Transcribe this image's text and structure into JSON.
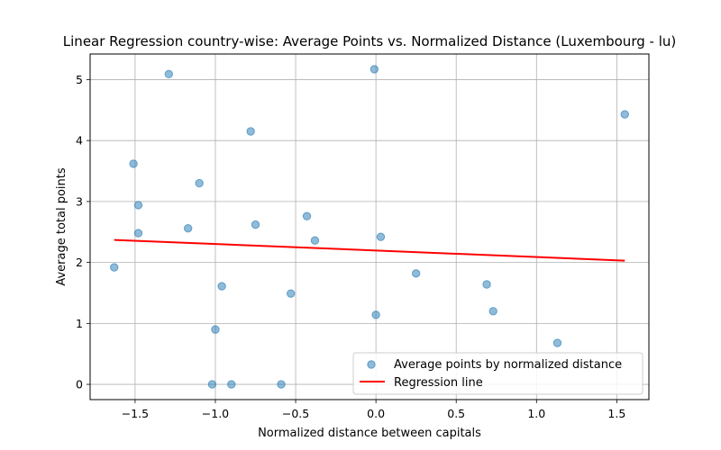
{
  "chart_data": {
    "type": "scatter",
    "title": "Linear Regression country-wise: Average Points vs. Normalized Distance (Luxembourg - lu)",
    "xlabel": "Normalized distance between capitals",
    "ylabel": "Average total points",
    "xlim": [
      -1.78,
      1.7
    ],
    "ylim": [
      -0.25,
      5.42
    ],
    "xticks": [
      -1.5,
      -1.0,
      -0.5,
      0.0,
      0.5,
      1.0,
      1.5
    ],
    "xtick_labels": [
      "−1.5",
      "−1.0",
      "−0.5",
      "0.0",
      "0.5",
      "1.0",
      "1.5"
    ],
    "yticks": [
      0,
      1,
      2,
      3,
      4,
      5
    ],
    "ytick_labels": [
      "0",
      "1",
      "2",
      "3",
      "4",
      "5"
    ],
    "grid": true,
    "legend_position": "lower-right",
    "series": [
      {
        "name": "Average points by normalized distance",
        "kind": "scatter",
        "color": "#1f77b4",
        "points": [
          {
            "x": -1.63,
            "y": 1.92
          },
          {
            "x": -1.51,
            "y": 3.62
          },
          {
            "x": -1.48,
            "y": 2.94
          },
          {
            "x": -1.48,
            "y": 2.48
          },
          {
            "x": -1.29,
            "y": 5.09
          },
          {
            "x": -1.17,
            "y": 2.56
          },
          {
            "x": -1.1,
            "y": 3.3
          },
          {
            "x": -1.02,
            "y": 0.0
          },
          {
            "x": -1.0,
            "y": 0.9
          },
          {
            "x": -0.96,
            "y": 1.61
          },
          {
            "x": -0.9,
            "y": 0.0
          },
          {
            "x": -0.78,
            "y": 4.15
          },
          {
            "x": -0.75,
            "y": 2.62
          },
          {
            "x": -0.59,
            "y": 0.0
          },
          {
            "x": -0.53,
            "y": 1.49
          },
          {
            "x": -0.43,
            "y": 2.76
          },
          {
            "x": -0.38,
            "y": 2.36
          },
          {
            "x": -0.01,
            "y": 5.17
          },
          {
            "x": 0.0,
            "y": 1.14
          },
          {
            "x": 0.03,
            "y": 2.42
          },
          {
            "x": 0.25,
            "y": 1.82
          },
          {
            "x": 0.69,
            "y": 1.64
          },
          {
            "x": 0.73,
            "y": 1.2
          },
          {
            "x": 1.13,
            "y": 0.68
          },
          {
            "x": 1.55,
            "y": 4.43
          }
        ]
      },
      {
        "name": "Regression line",
        "kind": "line",
        "color": "#ff0000",
        "x": [
          -1.63,
          1.55
        ],
        "y": [
          2.37,
          2.03
        ]
      }
    ]
  }
}
